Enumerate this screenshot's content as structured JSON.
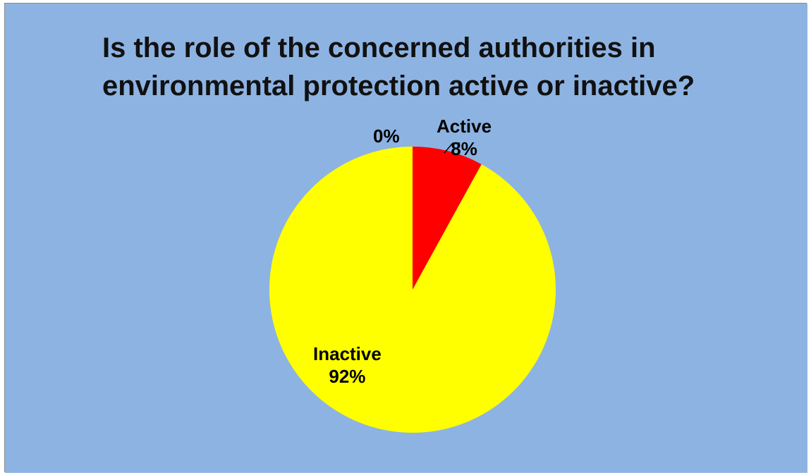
{
  "chart_data": {
    "type": "pie",
    "title": "Is the role of the concerned authorities in environmental protection active or inactive?",
    "categories": [
      "Active",
      "Inactive",
      ""
    ],
    "values": [
      8,
      92,
      0
    ],
    "data_labels": [
      {
        "category": "Active",
        "percent": "8%"
      },
      {
        "category": "Inactive",
        "percent": "92%"
      },
      {
        "category": "",
        "percent": "0%"
      }
    ],
    "colors": [
      "#ff0000",
      "#ffff00",
      "#8db3e2"
    ],
    "legend": "none"
  },
  "background_color": "#8db3e2"
}
